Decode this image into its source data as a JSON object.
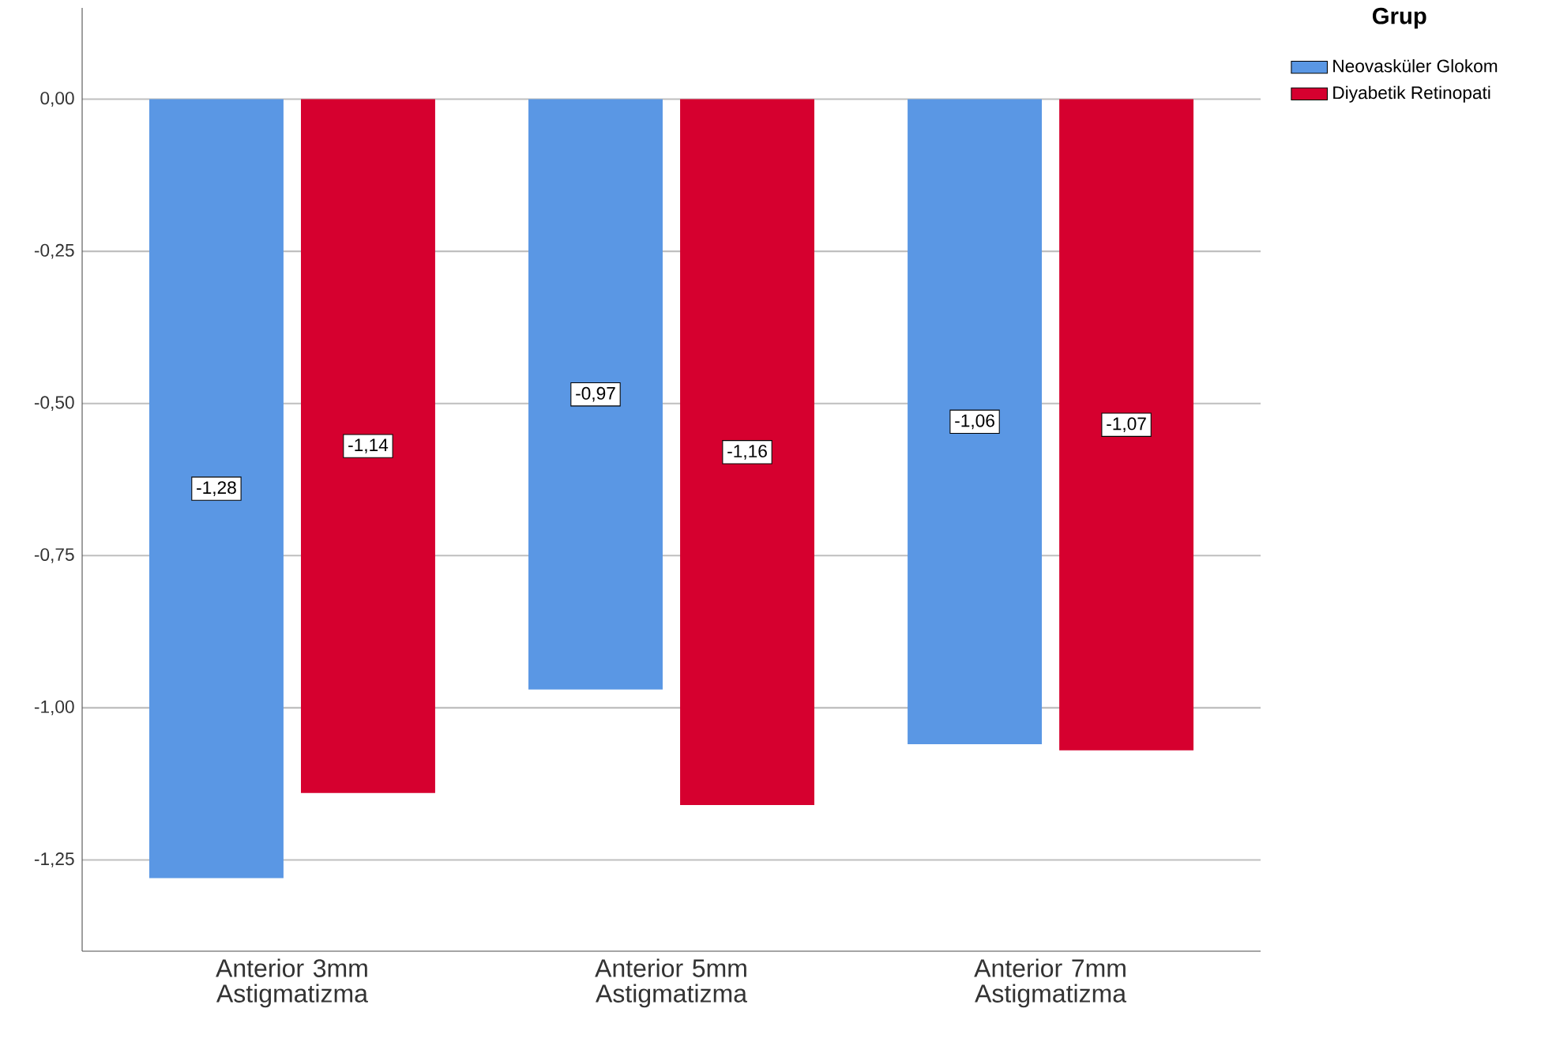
{
  "chart_data": {
    "type": "bar",
    "categories": [
      "Anterior 3mm Astigmatizma",
      "Anterior 5mm Astigmatizma",
      "Anterior 7mm Astigmatizma"
    ],
    "series": [
      {
        "name": "Neovasküler Glokom",
        "color": "#5a97e4",
        "values": [
          -1.28,
          -0.97,
          -1.06
        ],
        "value_labels": [
          "-1,28",
          "-0,97",
          "-1,06"
        ]
      },
      {
        "name": "Diyabetik Retinopati",
        "color": "#d6002f",
        "values": [
          -1.14,
          -1.16,
          -1.07
        ],
        "value_labels": [
          "-1,14",
          "-1,16",
          "-1,07"
        ]
      }
    ],
    "legend_title": "Grup",
    "legend": "top right",
    "grid": "y",
    "ylim": [
      -1.4,
      0.15
    ],
    "yticks": [
      {
        "value": 0,
        "label": "0,00"
      },
      {
        "value": -0.25,
        "label": "-0,25"
      },
      {
        "value": -0.5,
        "label": "-0,50"
      },
      {
        "value": -0.75,
        "label": "-0,75"
      },
      {
        "value": -1,
        "label": "-1,00"
      },
      {
        "value": -1.25,
        "label": "-1,25"
      }
    ]
  }
}
